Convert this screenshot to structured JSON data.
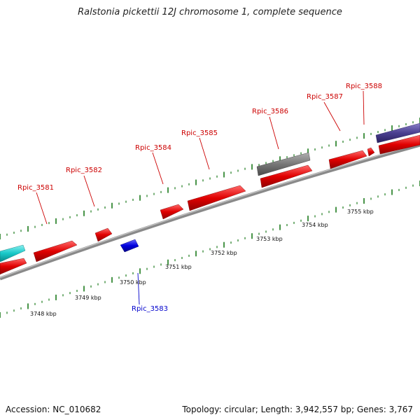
{
  "title": "Ralstonia pickettii 12J chromosome 1, complete sequence",
  "footer": {
    "accession": "Accession: NC_010682",
    "summary": "Topology: circular; Length: 3,942,557 bp; Genes: 3,767"
  },
  "genes": [
    {
      "name": "Rpic_3581",
      "strand": "+",
      "color": "#e00000"
    },
    {
      "name": "Rpic_3582",
      "strand": "+",
      "color": "#e00000"
    },
    {
      "name": "Rpic_3583",
      "strand": "-",
      "color": "#0000dd"
    },
    {
      "name": "Rpic_3584",
      "strand": "+",
      "color": "#e00000"
    },
    {
      "name": "Rpic_3585",
      "strand": "+",
      "color": "#e00000"
    },
    {
      "name": "Rpic_3586",
      "strand": "+",
      "color": "#e00000"
    },
    {
      "name": "Rpic_3587",
      "strand": "+",
      "color": "#e00000"
    },
    {
      "name": "Rpic_3588",
      "strand": "+",
      "color": "#e00000"
    }
  ],
  "scale_labels": [
    "3748 kbp",
    "3749 kbp",
    "3750 kbp",
    "3751 kbp",
    "3752 kbp",
    "3753 kbp",
    "3754 kbp",
    "3755 kbp"
  ],
  "colors": {
    "forward_gene": "#e00000",
    "reverse_gene": "#0000dd",
    "forward_label": "#cc0000",
    "reverse_label": "#0000cc",
    "tick": "#1a7a1a",
    "backbone": "#8a8a8a",
    "rna_feature": "#777777",
    "cyan_feature": "#18c8c8",
    "purple_feature": "#4a3f90"
  }
}
